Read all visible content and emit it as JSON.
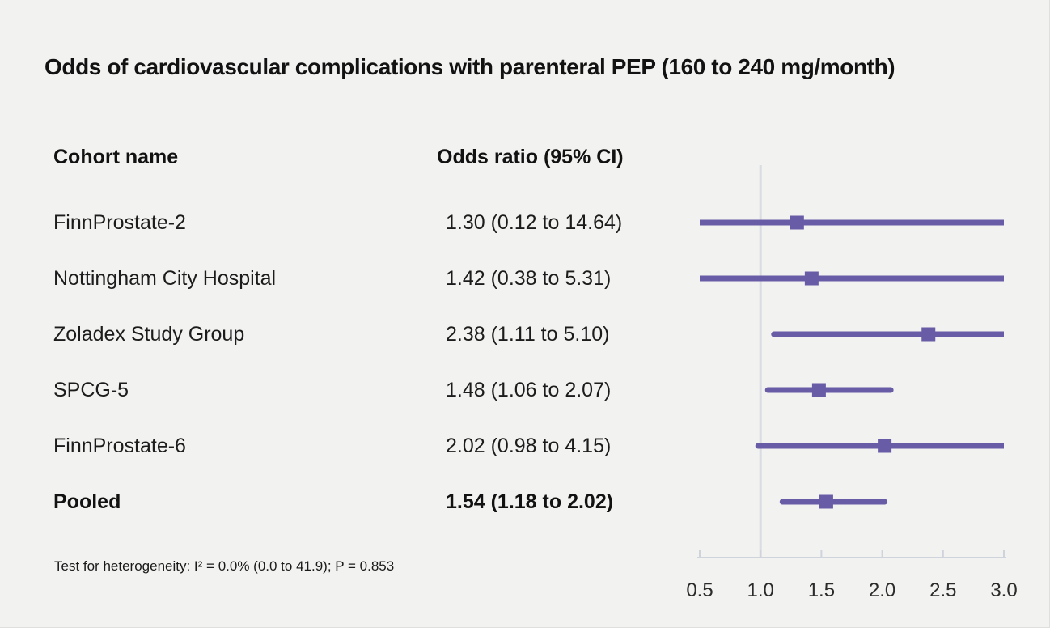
{
  "title": "Odds of cardiovascular complications with parenteral PEP (160 to 240 mg/month)",
  "columns": {
    "cohort": "Cohort name",
    "odds": "Odds ratio (95% CI)"
  },
  "footnote": "Test for heterogeneity: I² = 0.0% (0.0 to 41.9); P = 0.853",
  "chart_data": {
    "type": "forest",
    "title": "Odds of cardiovascular complications with parenteral PEP (160 to 240 mg/month)",
    "x_axis": {
      "xlim": [
        0.5,
        3.0
      ],
      "ticks": [
        0.5,
        1.0,
        1.5,
        2.0,
        2.5,
        3.0
      ],
      "tick_labels": [
        "0.5",
        "1.0",
        "1.5",
        "2.0",
        "2.5",
        "3.0"
      ],
      "reference_value": 1.0,
      "grid": false
    },
    "rows": [
      {
        "cohort": "FinnProstate-2",
        "label": "1.30 (0.12 to 14.64)",
        "or": 1.3,
        "ci_low": 0.12,
        "ci_high": 14.64,
        "pooled": false
      },
      {
        "cohort": "Nottingham City Hospital",
        "label": "1.42 (0.38 to 5.31)",
        "or": 1.42,
        "ci_low": 0.38,
        "ci_high": 5.31,
        "pooled": false
      },
      {
        "cohort": "Zoladex Study Group",
        "label": "2.38 (1.11 to 5.10)",
        "or": 2.38,
        "ci_low": 1.11,
        "ci_high": 5.1,
        "pooled": false
      },
      {
        "cohort": "SPCG-5",
        "label": "1.48 (1.06 to 2.07)",
        "or": 1.48,
        "ci_low": 1.06,
        "ci_high": 2.07,
        "pooled": false
      },
      {
        "cohort": "FinnProstate-6",
        "label": "2.02 (0.98 to 4.15)",
        "or": 2.02,
        "ci_low": 0.98,
        "ci_high": 4.15,
        "pooled": false
      },
      {
        "cohort": "Pooled",
        "label": "1.54 (1.18 to 2.02)",
        "or": 1.54,
        "ci_low": 1.18,
        "ci_high": 2.02,
        "pooled": true
      }
    ],
    "colors": {
      "marker": "#695ca6",
      "ci_line": "#695ca6",
      "reference_line": "#d9dce3",
      "axis_line": "#cfd3dc",
      "background": "#f2f2f0",
      "text": "#1a1a1a"
    }
  }
}
